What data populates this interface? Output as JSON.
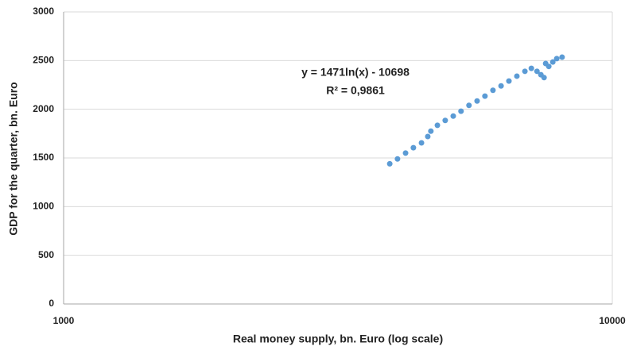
{
  "chart_data": {
    "type": "scatter",
    "xlabel": "Real money supply, bn. Euro (log scale)",
    "ylabel": "GDP for the quarter, bn. Euro",
    "annotations": [
      "y = 1471ln(x) - 10698",
      "R² = 0,9861"
    ],
    "xlog": true,
    "xlim": [
      1000,
      10000
    ],
    "xticks": [
      1000,
      10000
    ],
    "ylim": [
      0,
      3000
    ],
    "yticks": [
      0,
      500,
      1000,
      1500,
      2000,
      2500,
      3000
    ],
    "grid": true,
    "series": [
      {
        "name": "GDP",
        "color": "#5b9bd5",
        "x": [
          3930,
          4060,
          4200,
          4340,
          4490,
          4610,
          4670,
          4800,
          4960,
          5130,
          5300,
          5480,
          5670,
          5860,
          6060,
          6270,
          6480,
          6700,
          6930,
          7120,
          7290,
          7410,
          7510,
          7560,
          7660,
          7790,
          7920,
          8100
        ],
        "values": [
          1440,
          1490,
          1550,
          1605,
          1655,
          1720,
          1775,
          1835,
          1885,
          1930,
          1980,
          2040,
          2085,
          2135,
          2195,
          2240,
          2290,
          2340,
          2390,
          2420,
          2390,
          2355,
          2325,
          2470,
          2440,
          2485,
          2520,
          2535
        ]
      }
    ]
  }
}
